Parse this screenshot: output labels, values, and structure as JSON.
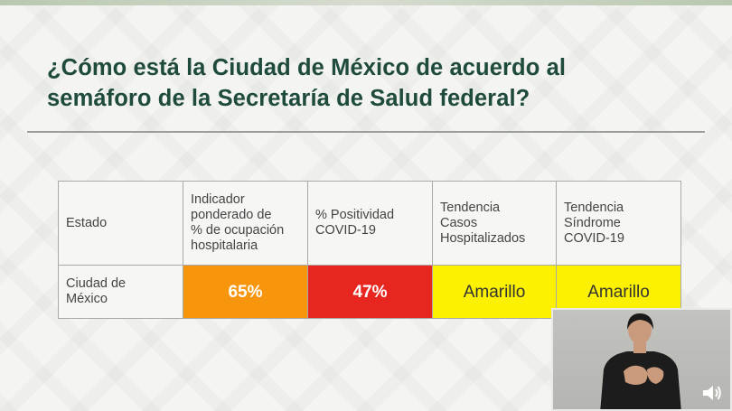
{
  "slide": {
    "title_line1": "¿Cómo está la Ciudad de México de acuerdo al",
    "title_line2": "semáforo de la Secretaría de Salud federal?"
  },
  "table": {
    "headers": [
      [
        "Estado"
      ],
      [
        "Indicador",
        "ponderado de",
        "% de ocupación",
        "hospitalaria"
      ],
      [
        "% Positividad",
        "COVID-19"
      ],
      [
        "Tendencia",
        "Casos",
        "Hospitalizados"
      ],
      [
        "Tendencia",
        "Síndrome",
        "COVID-19"
      ]
    ],
    "row": {
      "state": [
        "Ciudad de",
        "México"
      ],
      "values": [
        "65%",
        "47%",
        "Amarillo",
        "Amarillo"
      ]
    }
  },
  "colors": {
    "title": "#1f4b3c",
    "orange": "#f7950d",
    "red": "#e6261f",
    "yellow": "#fbf100"
  },
  "icons": {
    "speaker": "speaker-volume-icon"
  }
}
